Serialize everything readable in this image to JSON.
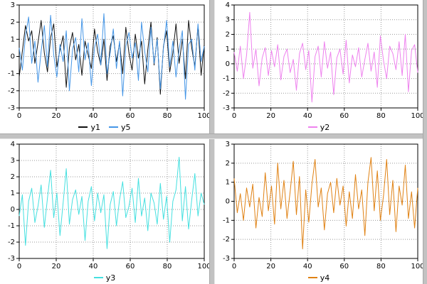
{
  "chart_data": [
    {
      "type": "line",
      "title": "",
      "xlabel": "",
      "ylabel": "",
      "xlim": [
        0,
        100
      ],
      "xticks": [
        0,
        20,
        40,
        60,
        80,
        100
      ],
      "ylim": [
        -3,
        3
      ],
      "yticks": [
        3,
        2,
        1,
        0,
        -1,
        -2,
        -3
      ],
      "grid": "dotted",
      "legend_position": "bottom",
      "series": [
        {
          "name": "y1",
          "color": "#111111",
          "values": [
            -1.2,
            0.3,
            1.8,
            0.9,
            1.5,
            -0.4,
            0.8,
            2.1,
            0.2,
            -0.9,
            1.1,
            1.9,
            -0.6,
            0.4,
            1.2,
            -1.8,
            0.5,
            1.4,
            -0.2,
            0.7,
            -1.1,
            0.9,
            0.1,
            -0.7,
            1.6,
            0.3,
            -0.5,
            1.0,
            -1.4,
            0.6,
            1.2,
            -0.3,
            0.8,
            -1.0,
            1.7,
            0.2,
            -0.8,
            1.3,
            -0.1,
            0.9,
            -1.6,
            0.4,
            2.0,
            -0.5,
            1.1,
            -2.2,
            0.6,
            1.5,
            -0.9,
            0.2,
            1.9,
            -0.4,
            1.0,
            -1.3,
            2.1,
            0.5,
            -0.6,
            1.8,
            -1.1,
            0.7
          ]
        },
        {
          "name": "y5",
          "color": "#4596e7",
          "values": [
            0.5,
            -0.8,
            1.2,
            2.3,
            -0.4,
            0.9,
            -1.5,
            0.3,
            1.8,
            -0.6,
            2.4,
            0.1,
            -1.2,
            0.7,
            -0.3,
            1.5,
            -2.0,
            0.4,
            1.1,
            -0.9,
            2.2,
            -0.2,
            0.8,
            -1.7,
            0.5,
            1.3,
            -0.5,
            2.5,
            -1.0,
            0.2,
            1.6,
            -0.7,
            0.9,
            -2.3,
            0.6,
            1.4,
            -0.1,
            0.8,
            -1.4,
            2.0,
            0.3,
            -0.9,
            1.7,
            -0.4,
            1.0,
            -1.9,
            0.5,
            2.1,
            -0.6,
            0.9,
            -1.2,
            0.4,
            1.5,
            -2.5,
            0.7,
            1.0,
            -0.8,
            1.9,
            -0.3,
            0.6
          ]
        }
      ]
    },
    {
      "type": "line",
      "title": "",
      "xlabel": "",
      "ylabel": "",
      "xlim": [
        0,
        100
      ],
      "xticks": [
        0,
        20,
        40,
        60,
        80,
        100
      ],
      "ylim": [
        -3,
        4
      ],
      "yticks": [
        4,
        3,
        2,
        1,
        0,
        -1,
        -2,
        -3
      ],
      "grid": "dotted",
      "legend_position": "bottom",
      "series": [
        {
          "name": "y2",
          "color": "#ee82ee",
          "values": [
            0.8,
            -0.5,
            1.2,
            -1.0,
            0.6,
            3.5,
            -0.3,
            1.0,
            -1.5,
            0.4,
            1.1,
            -0.8,
            0.9,
            -0.2,
            1.3,
            -1.1,
            0.5,
            1.0,
            -0.6,
            0.3,
            -1.8,
            0.7,
            1.4,
            -0.4,
            0.9,
            -2.6,
            0.5,
            1.2,
            -0.9,
            1.5,
            -0.3,
            0.8,
            -2.1,
            0.4,
            1.0,
            -0.7,
            1.6,
            -1.3,
            0.6,
            -0.2,
            1.1,
            -0.9,
            0.3,
            1.4,
            -0.5,
            0.8,
            -1.6,
            1.9,
            0.2,
            -1.0,
            1.2,
            0.7,
            -0.4,
            1.5,
            -0.8,
            2.0,
            -1.9,
            0.9,
            1.3,
            -0.6
          ]
        }
      ]
    },
    {
      "type": "line",
      "title": "",
      "xlabel": "",
      "ylabel": "",
      "xlim": [
        0,
        100
      ],
      "xticks": [
        0,
        20,
        40,
        60,
        80,
        100
      ],
      "ylim": [
        -3,
        4
      ],
      "yticks": [
        4,
        3,
        2,
        1,
        0,
        -1,
        -2,
        -3
      ],
      "grid": "dotted",
      "legend_position": "bottom",
      "series": [
        {
          "name": "y3",
          "color": "#45e0e0",
          "values": [
            -0.4,
            0.9,
            -2.2,
            0.5,
            1.3,
            -0.8,
            0.2,
            1.5,
            -1.1,
            0.7,
            2.4,
            -0.5,
            1.0,
            -1.6,
            0.4,
            2.5,
            -0.9,
            0.6,
            1.2,
            -0.3,
            0.8,
            -1.9,
            0.5,
            1.4,
            -0.7,
            1.0,
            -0.2,
            0.9,
            -2.4,
            0.3,
            1.1,
            -1.0,
            0.6,
            1.7,
            -0.5,
            0.2,
            1.3,
            -0.8,
            1.9,
            -0.4,
            0.7,
            -1.3,
            1.0,
            0.4,
            -0.9,
            1.6,
            -0.6,
            0.8,
            -2.0,
            0.5,
            1.2,
            3.2,
            -0.7,
            1.4,
            -1.2,
            0.6,
            2.2,
            -0.4,
            1.0,
            0.3
          ]
        }
      ]
    },
    {
      "type": "line",
      "title": "",
      "xlabel": "",
      "ylabel": "",
      "xlim": [
        0,
        100
      ],
      "xticks": [
        0,
        20,
        40,
        60,
        80,
        100
      ],
      "ylim": [
        -3,
        3
      ],
      "yticks": [
        3,
        2,
        1,
        0,
        -1,
        -2,
        -3
      ],
      "grid": "dotted",
      "legend_position": "bottom",
      "series": [
        {
          "name": "y4",
          "color": "#e08214",
          "values": [
            1.2,
            -0.6,
            0.4,
            -1.0,
            0.7,
            -0.3,
            0.9,
            -1.4,
            0.2,
            -0.8,
            1.5,
            -0.5,
            0.8,
            -1.2,
            2.0,
            -0.4,
            1.1,
            -0.9,
            0.5,
            2.1,
            -0.7,
            1.3,
            -2.5,
            0.6,
            -1.1,
            0.9,
            2.2,
            -0.3,
            0.7,
            -1.5,
            0.4,
            1.0,
            -0.6,
            1.2,
            -0.2,
            0.8,
            -1.3,
            0.5,
            -0.9,
            1.4,
            -0.4,
            0.6,
            -1.8,
            1.0,
            2.3,
            -0.5,
            1.6,
            -1.0,
            0.3,
            2.2,
            -0.7,
            1.1,
            -1.6,
            0.8,
            -0.2,
            1.9,
            -0.9,
            0.5,
            -1.4,
            0.7
          ]
        }
      ]
    }
  ],
  "style": {
    "grid_color": "#999999",
    "axis_color": "#000000",
    "divider_color": "#c2c2c2"
  }
}
